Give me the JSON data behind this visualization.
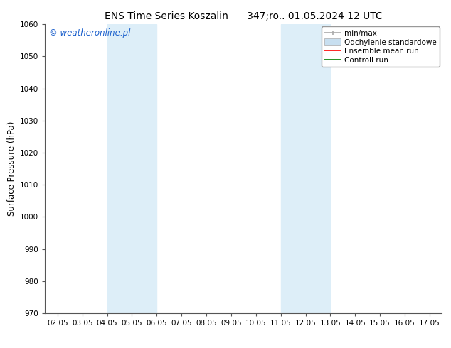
{
  "title": "ENS Time Series Koszalin      347;ro.. 01.05.2024 12 UTC",
  "ylabel": "Surface Pressure (hPa)",
  "ylim": [
    970,
    1060
  ],
  "yticks": [
    970,
    980,
    990,
    1000,
    1010,
    1020,
    1030,
    1040,
    1050,
    1060
  ],
  "xtick_labels": [
    "02.05",
    "03.05",
    "04.05",
    "05.05",
    "06.05",
    "07.05",
    "08.05",
    "09.05",
    "10.05",
    "11.05",
    "12.05",
    "13.05",
    "14.05",
    "15.05",
    "16.05",
    "17.05"
  ],
  "num_xticks": 16,
  "background_color": "#ffffff",
  "plot_bg_color": "#ffffff",
  "watermark": "© weatheronline.pl",
  "watermark_color": "#1a5fcc",
  "shade_regions": [
    {
      "start": 2,
      "end": 4,
      "color": "#ddeef8"
    },
    {
      "start": 9,
      "end": 11,
      "color": "#ddeef8"
    }
  ],
  "legend_entries": [
    {
      "label": "min/max",
      "color": "#aaaaaa",
      "lw": 1.2
    },
    {
      "label": "Odchylenie standardowe",
      "color": "#c8dff0"
    },
    {
      "label": "Ensemble mean run",
      "color": "#ff0000",
      "lw": 1.2
    },
    {
      "label": "Controll run",
      "color": "#008000",
      "lw": 1.2
    }
  ],
  "title_fontsize": 10,
  "tick_fontsize": 7.5,
  "ylabel_fontsize": 8.5,
  "watermark_fontsize": 8.5,
  "legend_fontsize": 7.5
}
